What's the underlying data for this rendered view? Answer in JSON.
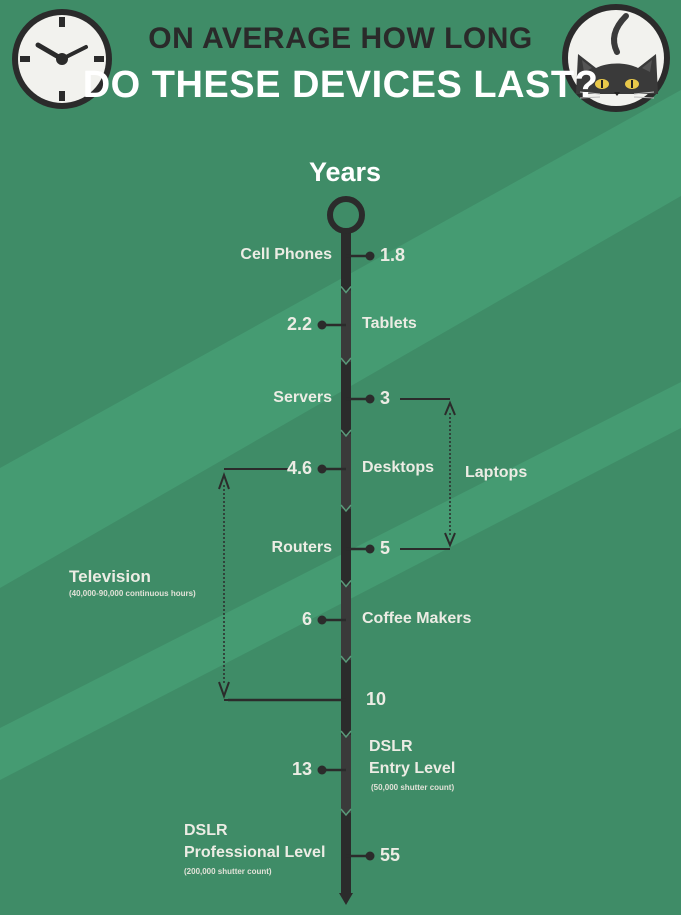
{
  "header": {
    "title_line1": "ON AVERAGE HOW LONG",
    "title_line2": "DO THESE DEVICES LAST?"
  },
  "icons": {
    "left": "clock-icon",
    "right": "cat-icon"
  },
  "colors": {
    "background": "#3f8c67",
    "stripe": "#459b72",
    "timeline": "#2b2b2b",
    "text": "#ecece4",
    "title_dark": "#2a2a2a"
  },
  "chart_data": {
    "type": "timeline",
    "axis_label": "Years",
    "items": [
      {
        "name": "Cell Phones",
        "value": 1.8,
        "value_label": "1.8",
        "label_side": "left"
      },
      {
        "name": "Tablets",
        "value": 2.2,
        "value_label": "2.2",
        "label_side": "right"
      },
      {
        "name": "Servers",
        "value": 3,
        "value_label": "3",
        "label_side": "left"
      },
      {
        "name": "Desktops",
        "value": 4.6,
        "value_label": "4.6",
        "label_side": "right"
      },
      {
        "name": "Routers",
        "value": 5,
        "value_label": "5",
        "label_side": "left"
      },
      {
        "name": "Coffee Makers",
        "value": 6,
        "value_label": "6",
        "label_side": "right"
      },
      {
        "name": "",
        "value": 10,
        "value_label": "10",
        "label_side": "none"
      },
      {
        "name": "DSLR Entry Level",
        "name_line1": "DSLR",
        "name_line2": "Entry Level",
        "note": "(50,000 shutter count)",
        "value": 13,
        "value_label": "13",
        "label_side": "right"
      },
      {
        "name": "DSLR Professional Level",
        "name_line1": "DSLR",
        "name_line2": "Professional Level",
        "note": "(200,000 shutter count)",
        "value": 55,
        "value_label": "55",
        "label_side": "left"
      }
    ],
    "ranges": [
      {
        "name": "Laptops",
        "from": 3,
        "to": 5
      },
      {
        "name": "Television",
        "note": "(40,000-90,000 continuous hours)",
        "from": 4.6,
        "to": 10
      }
    ]
  }
}
